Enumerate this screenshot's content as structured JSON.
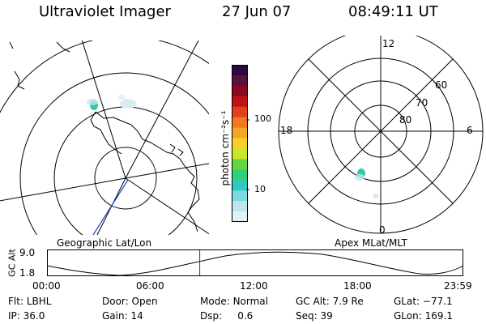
{
  "header": {
    "title": "Ultraviolet Imager",
    "date": "27 Jun 07",
    "time": "08:49:11 UT"
  },
  "colorbar": {
    "unit_label": "photon cm⁻²s⁻¹",
    "ticks": [
      "100",
      "10"
    ],
    "colors": [
      "#2b0a3d",
      "#5a0f3f",
      "#8a0a1f",
      "#c01018",
      "#e2401a",
      "#f27a1c",
      "#f5a623",
      "#f4d22b",
      "#c8e62a",
      "#66d640",
      "#2ecf78",
      "#2ec9c0",
      "#7dd8e0",
      "#bfe6ee",
      "#e6f1f3"
    ]
  },
  "left_map": {
    "caption": "Geographic Lat/Lon"
  },
  "right_map": {
    "caption": "Apex MLat/MLT",
    "mlt_labels": {
      "top": "12",
      "left": "18",
      "right": "6",
      "bottom": "0"
    },
    "lat_labels": [
      "60",
      "70",
      "80"
    ]
  },
  "altitude_plot": {
    "ylabel": "GC Alt",
    "yticks": [
      "9.0",
      "1.8"
    ],
    "xticks": [
      "00:00",
      "06:00",
      "12:00",
      "18:00",
      "23:59"
    ],
    "current_time_fraction": 0.367
  },
  "info": {
    "row1": [
      {
        "label": "Flt:",
        "value": "LBHL"
      },
      {
        "label": "Door:",
        "value": "Open"
      },
      {
        "label": "Mode:",
        "value": "Normal"
      },
      {
        "label": "GC Alt:",
        "value": "7.9 Re"
      },
      {
        "label": "GLat:",
        "value": "−77.1"
      }
    ],
    "row2": [
      {
        "label": "IP:",
        "value": "36.0"
      },
      {
        "label": "Gain:",
        "value": "14"
      },
      {
        "label": "Dsp:",
        "value": "0.6"
      },
      {
        "label": "Seq:",
        "value": "39"
      },
      {
        "label": "GLon:",
        "value": "169.1"
      }
    ]
  }
}
